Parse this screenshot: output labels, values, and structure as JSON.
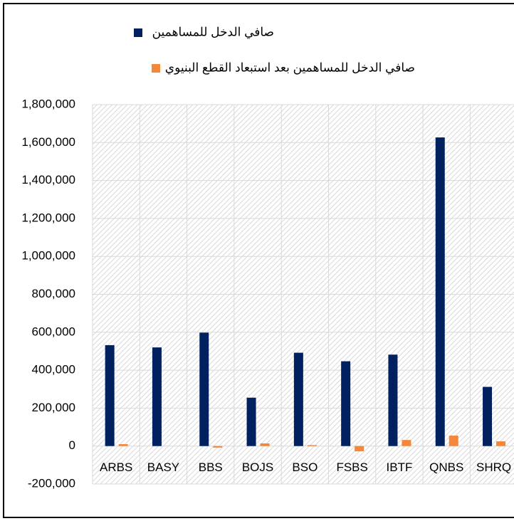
{
  "chart_data": {
    "type": "bar",
    "categories": [
      "ARBS",
      "BASY",
      "BBS",
      "BOJS",
      "BSO",
      "FSBS",
      "IBTF",
      "QNBS",
      "SHRQ"
    ],
    "series": [
      {
        "name": "صافي الدخل للمساهمين",
        "color": "#002060",
        "values": [
          532000,
          520000,
          598000,
          255000,
          492000,
          447000,
          482000,
          1627000,
          312000
        ]
      },
      {
        "name": "صافي الدخل للمساهمين بعد استبعاد القطع البنيوي",
        "color": "#f4873c",
        "values": [
          10000,
          0,
          -8000,
          14000,
          5000,
          -28000,
          32000,
          55000,
          25000
        ]
      }
    ],
    "ylim": [
      -200000,
      1800000
    ],
    "yticks": [
      {
        "value": -200000,
        "label": "-200,000"
      },
      0,
      {
        "value": 200000,
        "label": "200,000"
      },
      {
        "value": 400000,
        "label": "400,000"
      },
      {
        "value": 600000,
        "label": "600,000"
      },
      {
        "value": 800000,
        "label": "800,000"
      },
      {
        "value": 1000000,
        "label": "1,000,000"
      },
      {
        "value": 1200000,
        "label": "1,200,000"
      },
      {
        "value": 1400000,
        "label": "1,400,000"
      },
      {
        "value": 1600000,
        "label": "1,600,000"
      },
      {
        "value": 1800000,
        "label": "1,800,000"
      }
    ],
    "grid": true
  }
}
